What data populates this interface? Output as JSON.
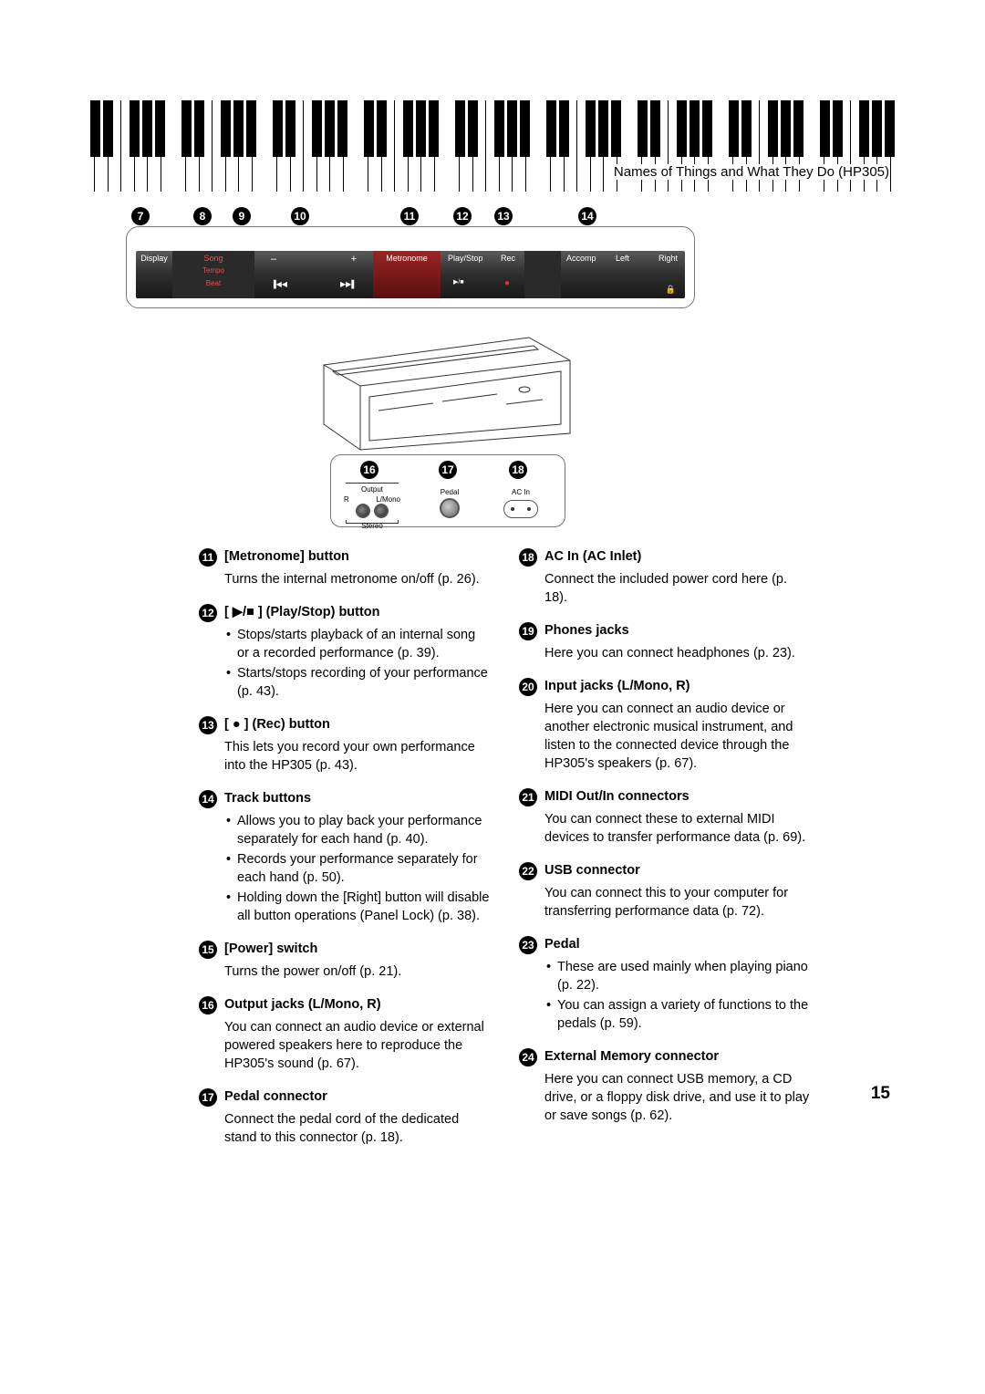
{
  "header": "Names of Things and What They Do (HP305)",
  "pageNumber": "15",
  "panel": {
    "callouts": [
      "7",
      "8",
      "9",
      "10",
      "11",
      "12",
      "13",
      "14"
    ],
    "display": "Display",
    "song": "Song",
    "tempo": "Tempo",
    "beat": "Beat",
    "minus": "–",
    "plus": "+",
    "metronome": "Metronome",
    "playstop": "Play/Stop",
    "rec": "Rec",
    "accomp": "Accomp",
    "left": "Left",
    "right": "Right"
  },
  "rear": {
    "callouts": [
      "16",
      "17",
      "18"
    ],
    "output": "Output",
    "r": "R",
    "lmono": "L/Mono",
    "stereo": "Stereo",
    "pedal": "Pedal",
    "acin": "AC In"
  },
  "leftCol": [
    {
      "n": "11",
      "h": "[Metronome] button",
      "p": "Turns the internal metronome on/off (p. 26)."
    },
    {
      "n": "12",
      "h": "[ ▶/■ ] (Play/Stop) button",
      "bullets": [
        "Stops/starts playback of an internal song or a recorded performance (p. 39).",
        "Starts/stops recording of your performance (p. 43)."
      ]
    },
    {
      "n": "13",
      "h": "[ ● ] (Rec) button",
      "p": "This lets you record your own performance into the HP305 (p. 43)."
    },
    {
      "n": "14",
      "h": "Track buttons",
      "bullets": [
        "Allows you to play back your performance separately for each hand (p. 40).",
        "Records your performance separately for each hand (p. 50).",
        "Holding down the [Right] button will disable all button operations (Panel Lock) (p. 38)."
      ]
    },
    {
      "n": "15",
      "h": "[Power] switch",
      "p": "Turns the power on/off (p. 21)."
    },
    {
      "n": "16",
      "h": "Output jacks (L/Mono, R)",
      "p": "You can connect an audio device or external powered speakers here to reproduce the HP305's sound (p. 67)."
    },
    {
      "n": "17",
      "h": "Pedal connector",
      "p": "Connect the pedal cord of the dedicated stand to this connector (p. 18)."
    }
  ],
  "rightCol": [
    {
      "n": "18",
      "h": "AC In (AC Inlet)",
      "p": "Connect the included power cord here (p. 18)."
    },
    {
      "n": "19",
      "h": "Phones jacks",
      "p": "Here you can connect headphones (p. 23)."
    },
    {
      "n": "20",
      "h": "Input jacks (L/Mono, R)",
      "p": "Here you can connect an audio device or another electronic musical instrument, and listen to the connected device through the HP305's speakers (p. 67)."
    },
    {
      "n": "21",
      "h": "MIDI Out/In connectors",
      "p": "You can connect these to external MIDI devices to transfer performance data (p. 69)."
    },
    {
      "n": "22",
      "h": "USB connector",
      "p": "You can connect this to your computer for transferring performance data (p. 72)."
    },
    {
      "n": "23",
      "h": "Pedal",
      "bullets": [
        "These are used mainly when playing piano (p. 22).",
        "You can assign a variety of functions to the pedals (p. 59)."
      ]
    },
    {
      "n": "24",
      "h": "External Memory connector",
      "p": "Here you can connect USB memory, a CD drive, or a floppy disk drive, and use it to play or save songs (p. 62)."
    }
  ]
}
